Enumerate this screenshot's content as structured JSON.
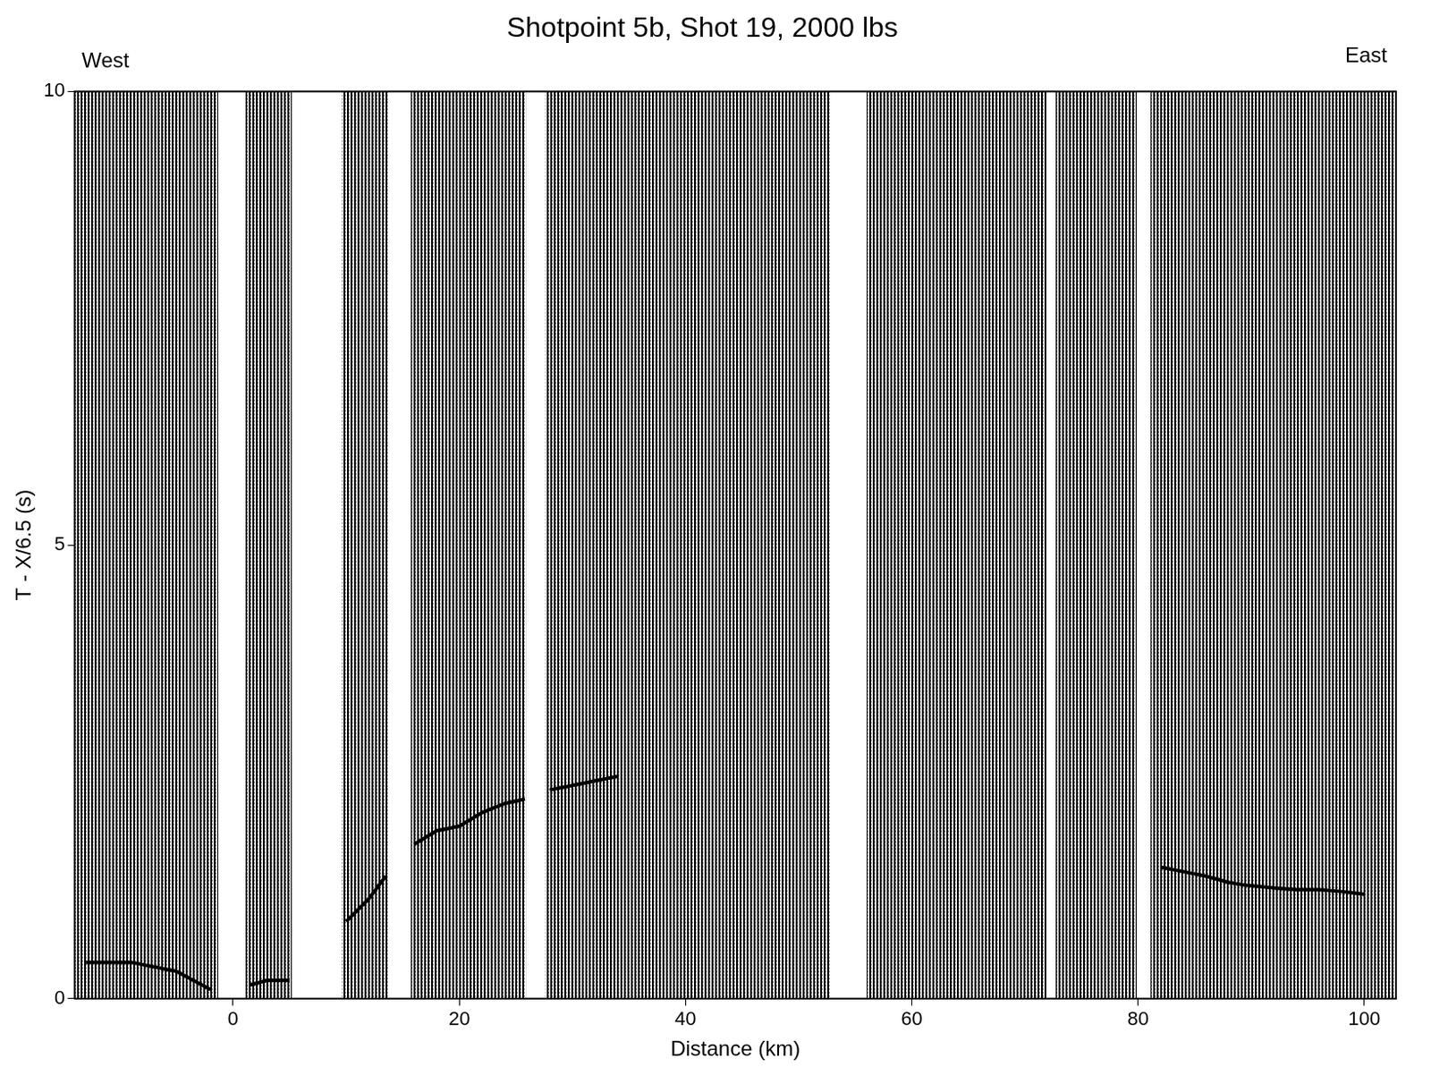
{
  "chart_data": {
    "type": "record_section",
    "title": "Shotpoint 5b, Shot 19, 2000 lbs",
    "annotations": [
      "West",
      "East"
    ],
    "x_label": "Distance (km)",
    "y_label": "T - X/6.5 (s)",
    "xlim": [
      -14,
      102.8
    ],
    "xticks": [
      0,
      20,
      40,
      60,
      80,
      100
    ],
    "ylim": [
      0,
      10
    ],
    "yticks": [
      0,
      5,
      10
    ],
    "grid": false,
    "color": "#000000",
    "coverage": [
      [
        -14,
        -1.3
      ],
      [
        1.1,
        5.2
      ],
      [
        9.6,
        13.7
      ],
      [
        15.7,
        25.9
      ],
      [
        27.6,
        52.8
      ],
      [
        56.0,
        71.9
      ],
      [
        72.7,
        79.9
      ],
      [
        81.1,
        102.8
      ]
    ],
    "first_arrivals": {
      "x": [
        -13,
        -9,
        -5,
        -2,
        0,
        1.5,
        3,
        5,
        7,
        10,
        12,
        13.5,
        14.5,
        16,
        18,
        20,
        22,
        24,
        25.8,
        27,
        28,
        30,
        32,
        34,
        60,
        82,
        84,
        86,
        88,
        89.5,
        92,
        94,
        96,
        98,
        100
      ],
      "y": [
        0.4,
        0.4,
        0.3,
        0.1,
        null,
        0.15,
        0.2,
        0.2,
        null,
        0.85,
        1.1,
        1.35,
        null,
        1.7,
        1.85,
        1.9,
        2.05,
        2.15,
        2.2,
        null,
        2.3,
        2.35,
        2.4,
        2.45,
        null,
        1.45,
        1.4,
        1.35,
        1.28,
        1.25,
        1.22,
        1.2,
        1.2,
        1.18,
        1.15
      ]
    }
  }
}
